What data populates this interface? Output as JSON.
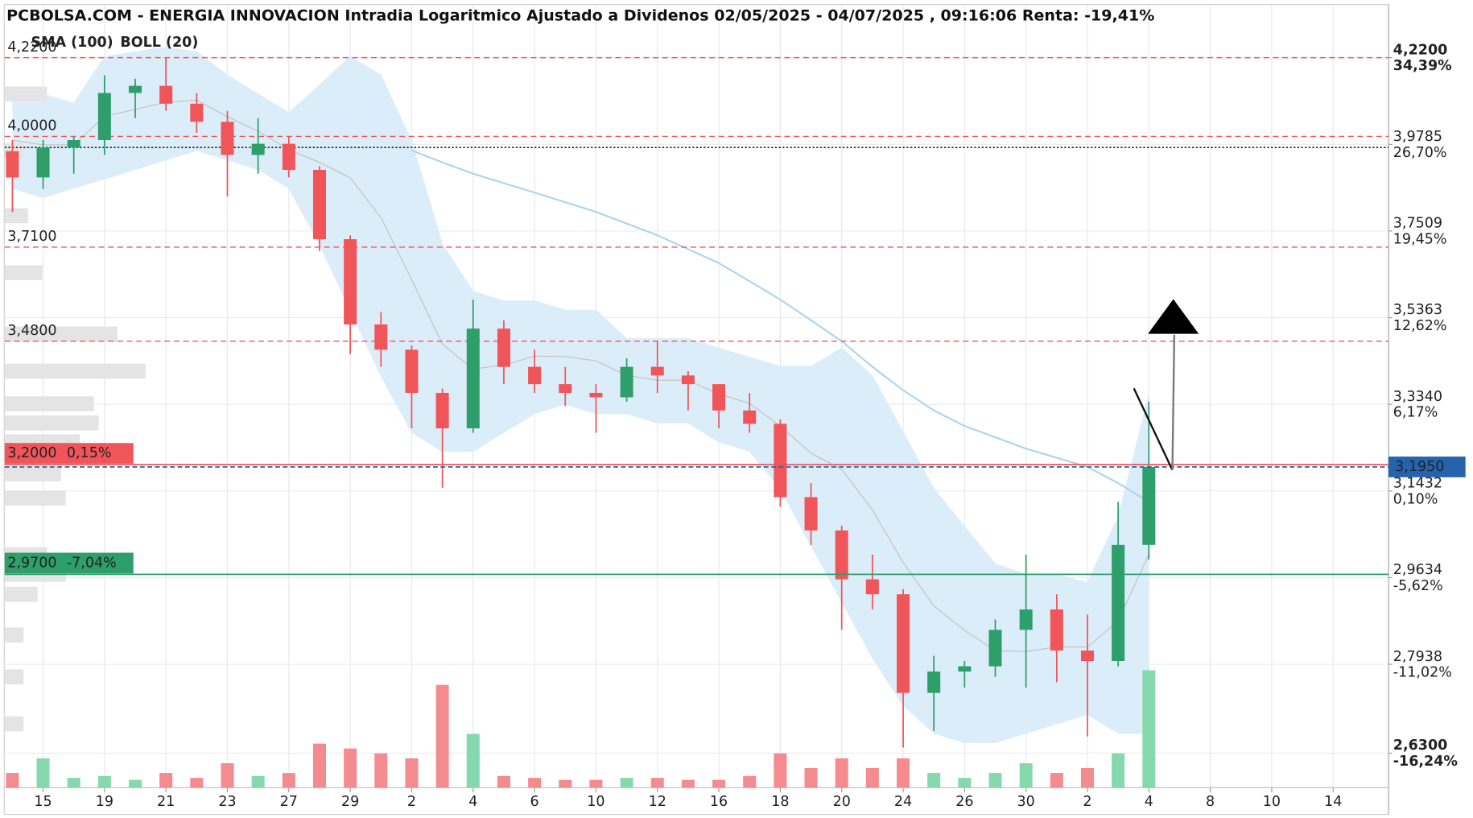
{
  "chart_data": {
    "type": "candlestick",
    "title": "PCBOLSA.COM - ENERGIA INNOVACION Intradia Logaritmico Ajustado a Dividenos 02/05/2025 - 04/07/2025 , 09:16:06 Renta: -19,41%",
    "log_scale": true,
    "grid": true,
    "up_color": "#2e9e6b",
    "down_color": "#f0555a",
    "volume_up_color": "#86d9ad",
    "volume_down_color": "#f48b8f",
    "x": [
      -1,
      0,
      1,
      2,
      3,
      4,
      5,
      6,
      7,
      8,
      9,
      10,
      11,
      12,
      13,
      14,
      15,
      16,
      17,
      18,
      19,
      20,
      21,
      22,
      23,
      24,
      25,
      26,
      27,
      28,
      29,
      30,
      31,
      32,
      33,
      34,
      35,
      36
    ],
    "open": [
      3.96,
      3.89,
      3.97,
      3.99,
      4.12,
      4.14,
      4.09,
      4.04,
      3.95,
      3.98,
      3.91,
      3.73,
      3.52,
      3.46,
      3.36,
      3.28,
      3.51,
      3.42,
      3.38,
      3.36,
      3.35,
      3.42,
      3.4,
      3.38,
      3.32,
      3.29,
      3.13,
      3.06,
      2.96,
      2.93,
      2.74,
      2.78,
      2.79,
      2.86,
      2.9,
      2.82,
      2.8,
      3.03
    ],
    "high": [
      3.99,
      3.99,
      4.0,
      4.17,
      4.16,
      4.22,
      4.12,
      4.07,
      4.05,
      4.0,
      3.92,
      3.74,
      3.55,
      3.47,
      3.37,
      3.58,
      3.53,
      3.46,
      3.42,
      3.38,
      3.44,
      3.48,
      3.41,
      3.38,
      3.36,
      3.3,
      3.16,
      3.07,
      3.01,
      2.94,
      2.81,
      2.8,
      2.88,
      3.01,
      2.93,
      2.89,
      3.12,
      3.34
    ],
    "low": [
      3.8,
      3.86,
      3.9,
      3.95,
      4.05,
      4.07,
      4.01,
      3.84,
      3.9,
      3.89,
      3.7,
      3.45,
      3.42,
      3.28,
      3.15,
      3.27,
      3.38,
      3.36,
      3.33,
      3.27,
      3.34,
      3.36,
      3.32,
      3.28,
      3.27,
      3.11,
      3.03,
      2.86,
      2.9,
      2.64,
      2.67,
      2.75,
      2.77,
      2.75,
      2.76,
      2.66,
      2.79,
      3.0
    ],
    "close": [
      3.89,
      3.97,
      3.99,
      4.12,
      4.14,
      4.09,
      4.04,
      3.95,
      3.98,
      3.91,
      3.73,
      3.52,
      3.46,
      3.36,
      3.28,
      3.51,
      3.42,
      3.38,
      3.36,
      3.35,
      3.42,
      3.4,
      3.38,
      3.32,
      3.29,
      3.13,
      3.06,
      2.96,
      2.93,
      2.74,
      2.78,
      2.79,
      2.86,
      2.9,
      2.82,
      2.8,
      3.03,
      3.195
    ],
    "volume": [
      15,
      30,
      10,
      12,
      8,
      15,
      10,
      25,
      12,
      15,
      45,
      40,
      35,
      30,
      105,
      55,
      12,
      10,
      8,
      8,
      10,
      10,
      8,
      8,
      12,
      35,
      20,
      30,
      20,
      30,
      15,
      10,
      15,
      25,
      15,
      20,
      35,
      120
    ],
    "sma": {
      "name": "SMA (100)",
      "color": "#a9d4f2",
      "values": [
        null,
        null,
        null,
        null,
        null,
        null,
        null,
        null,
        null,
        null,
        null,
        null,
        null,
        3.962,
        3.93,
        3.9,
        3.875,
        3.85,
        3.825,
        3.8,
        3.77,
        3.74,
        3.705,
        3.67,
        3.625,
        3.58,
        3.53,
        3.48,
        3.42,
        3.366,
        3.32,
        3.285,
        3.26,
        3.235,
        3.215,
        3.195,
        3.16,
        3.12
      ]
    },
    "bollinger": {
      "name": "BOLL (20)",
      "color": "#c8c8c8",
      "fill": "#dcedfa",
      "upper": [
        4.117,
        4.117,
        4.091,
        4.223,
        4.237,
        4.25,
        4.237,
        4.17,
        4.117,
        4.065,
        4.142,
        4.223,
        4.17,
        3.987,
        3.717,
        3.6,
        3.577,
        3.577,
        3.554,
        3.554,
        3.486,
        3.486,
        3.486,
        3.464,
        3.442,
        3.421,
        3.421,
        3.464,
        3.399,
        3.271,
        3.148,
        3.068,
        2.991,
        2.97,
        2.97,
        2.953,
        3.088,
        3.355
      ],
      "middle": [
        3.99,
        3.977,
        3.977,
        4.055,
        4.074,
        4.094,
        4.1,
        4.054,
        4.014,
        3.964,
        3.93,
        3.889,
        3.785,
        3.629,
        3.473,
        3.415,
        3.424,
        3.445,
        3.444,
        3.434,
        3.4,
        3.389,
        3.389,
        3.357,
        3.336,
        3.285,
        3.225,
        3.19,
        3.103,
        2.994,
        2.907,
        2.859,
        2.82,
        2.818,
        2.827,
        2.827,
        2.877,
        3.011
      ],
      "lower": [
        3.862,
        3.837,
        3.862,
        3.886,
        3.911,
        3.937,
        3.962,
        3.937,
        3.911,
        3.862,
        3.717,
        3.554,
        3.399,
        3.271,
        3.229,
        3.229,
        3.271,
        3.313,
        3.334,
        3.313,
        3.313,
        3.292,
        3.292,
        3.25,
        3.229,
        3.148,
        3.029,
        2.915,
        2.806,
        2.717,
        2.666,
        2.649,
        2.649,
        2.666,
        2.683,
        2.7,
        2.666,
        2.666
      ]
    },
    "volume_profile": {
      "color": "#e4e4e4",
      "prices": [
        4.117,
        3.962,
        3.79,
        3.646,
        3.497,
        3.41,
        3.335,
        3.292,
        3.25,
        3.18,
        3.128,
        3.01,
        2.97,
        2.93,
        2.85,
        2.77,
        2.683
      ],
      "values": [
        45,
        20,
        25,
        40,
        120,
        150,
        95,
        100,
        80,
        60,
        65,
        45,
        65,
        35,
        20,
        20,
        20
      ]
    },
    "xlim": [
      -1.25,
      43.8
    ],
    "xticks": [
      {
        "value": 0,
        "label": "15"
      },
      {
        "value": 2,
        "label": "19"
      },
      {
        "value": 4,
        "label": "21"
      },
      {
        "value": 6,
        "label": "23"
      },
      {
        "value": 8,
        "label": "27"
      },
      {
        "value": 10,
        "label": "29"
      },
      {
        "value": 12,
        "label": "2"
      },
      {
        "value": 14,
        "label": "4"
      },
      {
        "value": 16,
        "label": "6"
      },
      {
        "value": 18,
        "label": "10"
      },
      {
        "value": 20,
        "label": "12"
      },
      {
        "value": 22,
        "label": "16"
      },
      {
        "value": 24,
        "label": "18"
      },
      {
        "value": 26,
        "label": "20"
      },
      {
        "value": 28,
        "label": "24"
      },
      {
        "value": 30,
        "label": "26"
      },
      {
        "value": 32,
        "label": "30"
      },
      {
        "value": 34,
        "label": "2"
      },
      {
        "value": 36,
        "label": "4"
      },
      {
        "value": 38,
        "label": "8"
      },
      {
        "value": 40,
        "label": "10"
      },
      {
        "value": 42,
        "label": "14"
      }
    ],
    "ylim": [
      2.569,
      4.374
    ],
    "yticks": [
      {
        "value": 4.22,
        "label": "4,2200"
      },
      {
        "value": 3.9785,
        "label": "3,9785"
      },
      {
        "value": 3.7509,
        "label": "3,7509"
      },
      {
        "value": 3.5363,
        "label": "3,5363"
      },
      {
        "value": 3.334,
        "label": "3,3340"
      },
      {
        "value": 3.1432,
        "label": "3,1432"
      },
      {
        "value": 2.9634,
        "label": "2,9634"
      },
      {
        "value": 2.7938,
        "label": "2,7938"
      },
      {
        "value": 2.63,
        "label": "2,6300"
      }
    ],
    "ytick_changes": [
      {
        "value": 34.39,
        "label": "34,39%"
      },
      {
        "value": 26.7,
        "label": "26,70%"
      },
      {
        "value": 19.45,
        "label": "19,45%"
      },
      {
        "value": 12.62,
        "label": "12,62%"
      },
      {
        "value": 6.17,
        "label": "6,17%"
      },
      {
        "value": 0.1,
        "label": "0,10%"
      },
      {
        "value": -5.62,
        "label": "-5,62%"
      },
      {
        "value": -11.02,
        "label": "-11,02%"
      },
      {
        "value": -16.24,
        "label": "-16,24%"
      }
    ],
    "levels": [
      {
        "value": 4.22,
        "label": "4,2200"
      },
      {
        "value": 4.0,
        "label": "4,0000"
      },
      {
        "value": 3.71,
        "label": "3,7100"
      },
      {
        "value": 3.48,
        "label": "3,4800"
      }
    ],
    "level_color": "#f0555a",
    "reference_price": 3.97,
    "alerts": [
      {
        "price": {
          "value": 3.2,
          "label": "3,2000"
        },
        "change": {
          "value": 0.15,
          "label": "0,15%"
        }
      },
      {
        "price": {
          "value": 2.97,
          "label": "2,9700"
        },
        "change": {
          "value": -7.04,
          "label": "-7,04%"
        }
      }
    ],
    "last": {
      "value": 3.195,
      "label": "3,1950",
      "color": "#2563ad"
    }
  }
}
